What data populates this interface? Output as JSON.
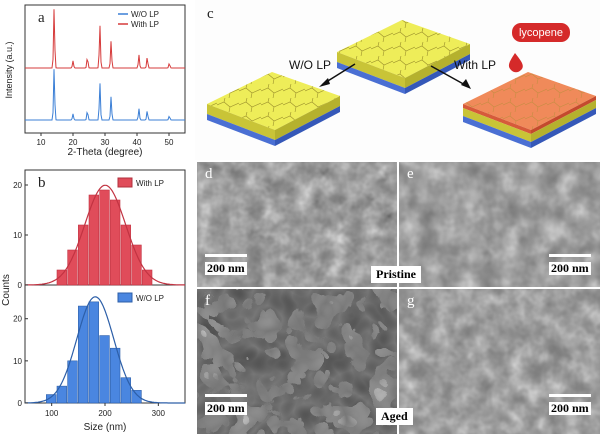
{
  "panels": {
    "a": {
      "letter": "a"
    },
    "b": {
      "letter": "b"
    },
    "c": {
      "letter": "c",
      "wo_label": "W/O LP",
      "with_label": "With LP",
      "lycopene": "lycopene"
    },
    "d": {
      "letter": "d",
      "scale": "200 nm"
    },
    "e": {
      "letter": "e",
      "scale": "200 nm"
    },
    "f": {
      "letter": "f",
      "scale": "200 nm"
    },
    "g": {
      "letter": "g",
      "scale": "200 nm"
    },
    "pristine": "Pristine",
    "aged": "Aged"
  },
  "chart_data": [
    {
      "type": "line",
      "panel": "a",
      "xlabel": "2-Theta (degree)",
      "ylabel": "Intensity (a.u.)",
      "xlim": [
        5,
        55
      ],
      "xticks": [
        10,
        20,
        30,
        40,
        50
      ],
      "legend_position": "top-right",
      "series": [
        {
          "name": "W/O LP",
          "color": "#3b7fd6",
          "peaks": [
            [
              14.1,
              1.0
            ],
            [
              20.0,
              0.12
            ],
            [
              24.5,
              0.18
            ],
            [
              28.4,
              0.72
            ],
            [
              31.9,
              0.45
            ],
            [
              40.6,
              0.22
            ],
            [
              43.2,
              0.18
            ],
            [
              50.1,
              0.08
            ]
          ]
        },
        {
          "name": "With LP",
          "color": "#d63b3b",
          "peaks": [
            [
              14.1,
              1.0
            ],
            [
              20.0,
              0.12
            ],
            [
              24.5,
              0.18
            ],
            [
              28.4,
              0.72
            ],
            [
              31.9,
              0.45
            ],
            [
              40.6,
              0.22
            ],
            [
              43.2,
              0.18
            ],
            [
              50.1,
              0.08
            ]
          ]
        }
      ]
    },
    {
      "type": "bar",
      "panel": "b-top",
      "series_name": "With LP",
      "color": "#e04c5a",
      "xlim": [
        50,
        350
      ],
      "ylim": [
        0,
        23
      ],
      "yticks": [
        0,
        10,
        20
      ],
      "bins": [
        120,
        140,
        160,
        180,
        200,
        220,
        240,
        260,
        280
      ],
      "values": [
        3,
        7,
        12,
        18,
        19,
        17,
        12,
        8,
        3
      ]
    },
    {
      "type": "bar",
      "panel": "b-bottom",
      "series_name": "W/O LP",
      "color": "#4a86e0",
      "xlim": [
        50,
        350
      ],
      "ylim": [
        0,
        28
      ],
      "yticks": [
        0,
        10,
        20
      ],
      "xticks": [
        100,
        200,
        300
      ],
      "xlabel": "Size (nm)",
      "ylabel": "Counts",
      "bins": [
        100,
        120,
        140,
        160,
        180,
        200,
        220,
        240,
        260
      ],
      "values": [
        2,
        4,
        10,
        23,
        24,
        16,
        13,
        6,
        3
      ]
    }
  ]
}
